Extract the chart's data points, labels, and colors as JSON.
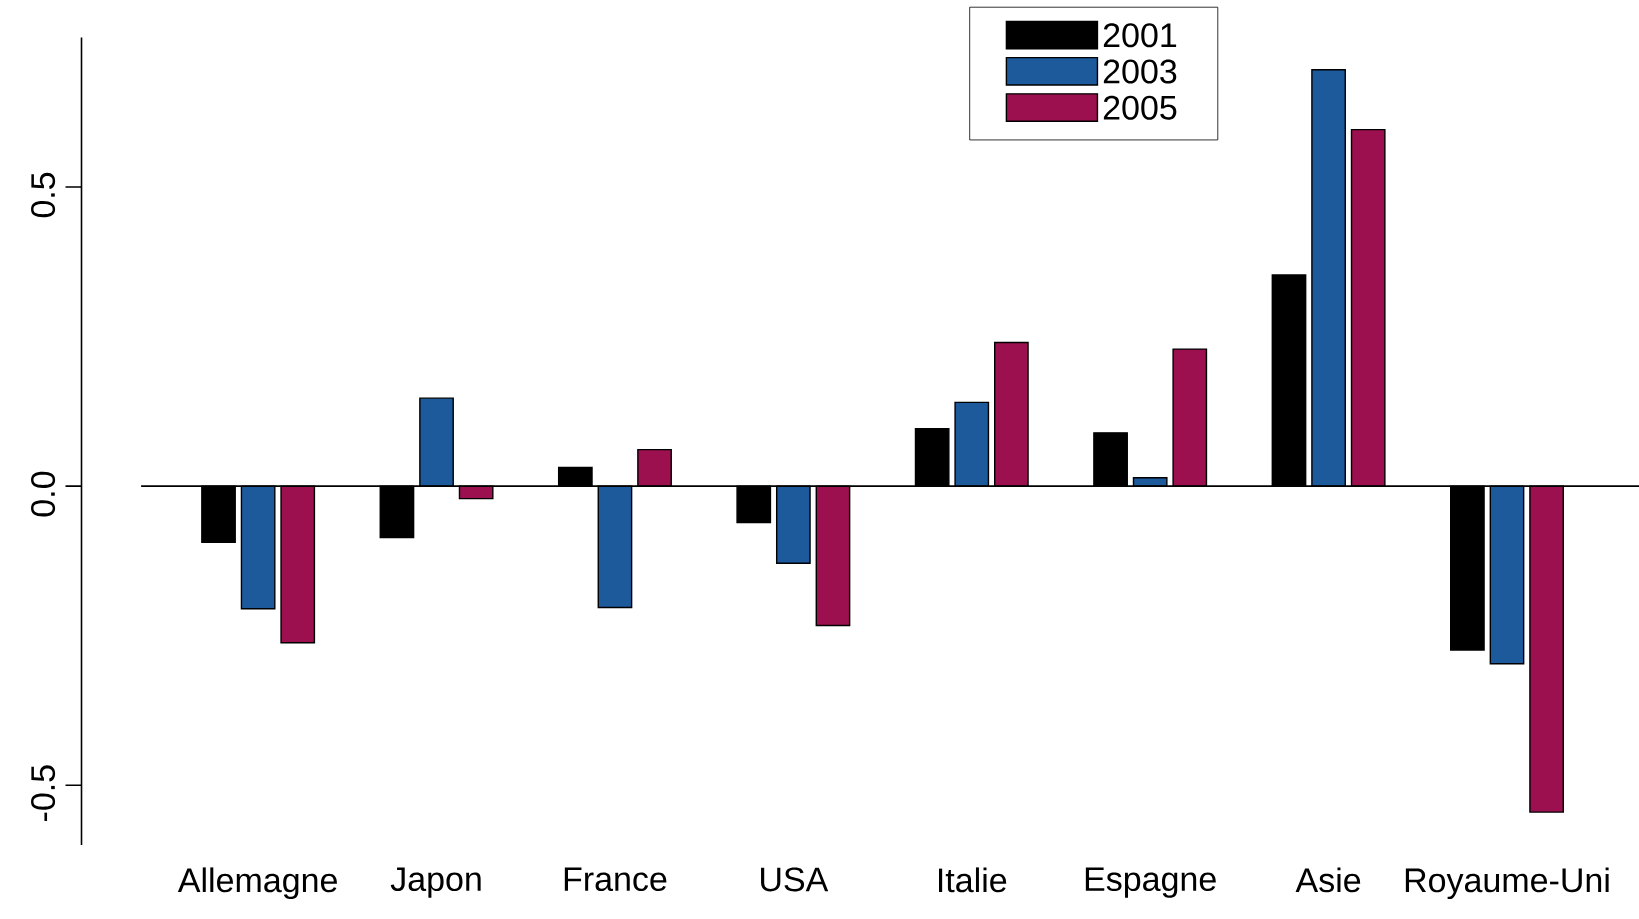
{
  "chart_data": {
    "type": "bar",
    "categories": [
      "Allemagne",
      "Japon",
      "France",
      "USA",
      "Italie",
      "Espagne",
      "Asie",
      "Royaume-Uni"
    ],
    "series": [
      {
        "name": "2001",
        "color": "#000000",
        "values": [
          -0.094,
          -0.086,
          0.031,
          -0.061,
          0.096,
          0.089,
          0.353,
          -0.274
        ]
      },
      {
        "name": "2003",
        "color": "#1c5a9c",
        "values": [
          -0.205,
          0.147,
          -0.203,
          -0.129,
          0.14,
          0.014,
          0.696,
          -0.297
        ]
      },
      {
        "name": "2005",
        "color": "#9c1050",
        "values": [
          -0.262,
          -0.021,
          0.061,
          -0.233,
          0.24,
          0.229,
          0.596,
          -0.545
        ]
      }
    ],
    "ylim": [
      -0.6,
      0.75
    ],
    "yticks": [
      -0.5,
      {
        "value": 0,
        "label": "0.0"
      },
      0.5
    ],
    "grid": false,
    "legend": "top",
    "ref_lines": [
      {
        "axis": "y",
        "value": 0
      }
    ]
  }
}
